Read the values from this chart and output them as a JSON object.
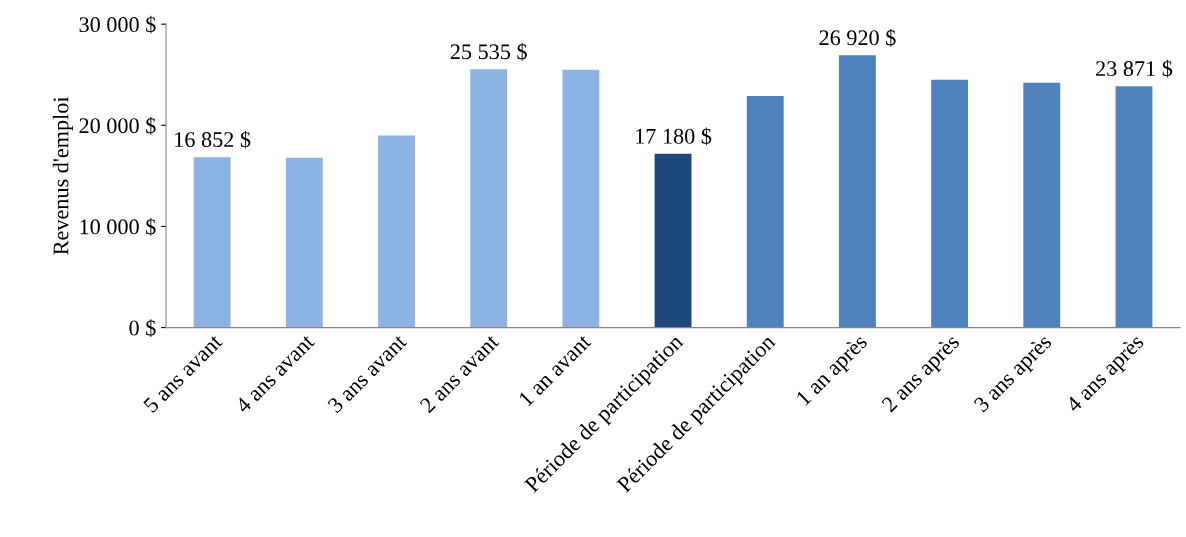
{
  "chart_data": {
    "type": "bar",
    "ylabel": "Revenus d'emploi",
    "categories": [
      "5 ans avant",
      "4 ans avant",
      "3 ans avant",
      "2 ans avant",
      "1 an avant",
      "Période de participation",
      "Période de participation",
      "1 an après",
      "2 ans après",
      "3 ans après",
      "4 ans après"
    ],
    "values": [
      16852,
      16800,
      19000,
      25535,
      25500,
      17180,
      22900,
      26920,
      24500,
      24200,
      23871
    ],
    "colors": [
      "#8db3e2",
      "#8db3e2",
      "#8db3e2",
      "#8db3e2",
      "#8db3e2",
      "#1f497d",
      "#4f81bd",
      "#4f81bd",
      "#4f81bd",
      "#4f81bd",
      "#4f81bd"
    ],
    "value_labels": [
      "16 852 $",
      null,
      null,
      "25 535 $",
      null,
      "17 180 $",
      null,
      "26 920 $",
      null,
      null,
      "23 871 $"
    ],
    "ylim": [
      0,
      30000
    ],
    "yticks": [
      {
        "value": 0,
        "label": "0 $"
      },
      {
        "value": 10000,
        "label": "10 000 $"
      },
      {
        "value": 20000,
        "label": "20 000 $"
      },
      {
        "value": 30000,
        "label": "30 000 $"
      }
    ],
    "grid": false,
    "legend": false
  }
}
